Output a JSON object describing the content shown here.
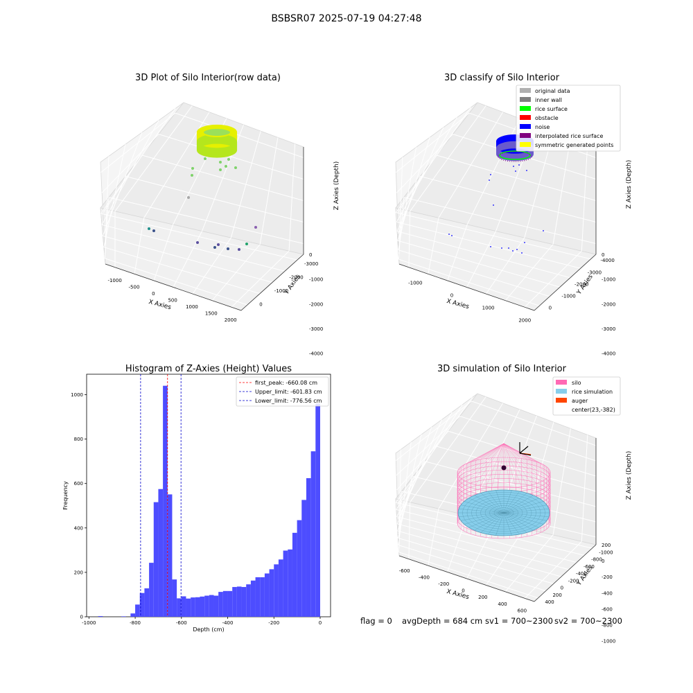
{
  "figure_title": "BSBSR07 2025-07-19 04:27:48",
  "footer": {
    "flag": "flag = 0",
    "avg_depth": "avgDepth = 684 cm",
    "sv1": "sv1 = 700~2300",
    "sv2": "sv2 = 700~2300"
  },
  "colors": {
    "hist_bar": "#4d4dff",
    "first_peak_line": "#ff0000",
    "limit_line": "#0000cc",
    "rice_surface": "#00ff00",
    "silo": "#ff69b4",
    "rice_simulation": "#87ceeb",
    "auger": "#ff4500"
  },
  "chart_data": [
    {
      "type": "scatter3d",
      "title": "3D Plot of Silo Interior(row data)",
      "xlabel": "X Axies",
      "ylabel": "Y Axies",
      "zlabel": "Z Axies (Depth)",
      "x_ticks": [
        "-1000",
        "-500",
        "0",
        "500",
        "1000",
        "1500",
        "2000"
      ],
      "y_ticks": [
        "0",
        "-1000",
        "-2000",
        "-3000"
      ],
      "z_ticks": [
        "0",
        "-1000",
        "-2000",
        "-3000",
        "-4000"
      ],
      "colormap": "viridis-by-depth"
    },
    {
      "type": "scatter3d",
      "title": "3D classify of Silo Interior",
      "xlabel": "X Axies",
      "ylabel": "Y Axies",
      "zlabel": "Z Axies (Depth)",
      "x_ticks": [
        "-1000",
        "0",
        "1000",
        "2000"
      ],
      "y_ticks": [
        "0",
        "-1000",
        "-2000",
        "-3000",
        "-4000"
      ],
      "z_ticks": [
        "0",
        "-1000",
        "-2000",
        "-3000",
        "-4000"
      ],
      "legend_position": "top-right",
      "legend": [
        {
          "label": "original data",
          "color": "#b0b0b0"
        },
        {
          "label": "inner wall",
          "color": "#808080"
        },
        {
          "label": "rice surface",
          "color": "#00ff00"
        },
        {
          "label": "obstacle",
          "color": "#ff0000"
        },
        {
          "label": "noise",
          "color": "#0000ff"
        },
        {
          "label": "interpolated rice surface",
          "color": "#800080"
        },
        {
          "label": "symmetric generated points",
          "color": "#ffff00"
        }
      ]
    },
    {
      "type": "bar",
      "title": "Histogram of Z-Axies (Height) Values",
      "xlabel": "Depth (cm)",
      "ylabel": "Frequency",
      "xlim": [
        -1010,
        45
      ],
      "ylim": [
        0,
        1092
      ],
      "x_ticks": [
        -1000,
        -800,
        -600,
        -400,
        -200,
        0
      ],
      "y_ticks": [
        0,
        200,
        400,
        600,
        800,
        1000
      ],
      "bin_width": 20,
      "bins": [
        [
          -940,
          3
        ],
        [
          -840,
          2
        ],
        [
          -800,
          15
        ],
        [
          -780,
          55
        ],
        [
          -760,
          107
        ],
        [
          -740,
          128
        ],
        [
          -720,
          243
        ],
        [
          -700,
          516
        ],
        [
          -680,
          575
        ],
        [
          -660,
          1040
        ],
        [
          -640,
          551
        ],
        [
          -620,
          168
        ],
        [
          -600,
          83
        ],
        [
          -580,
          92
        ],
        [
          -560,
          82
        ],
        [
          -540,
          87
        ],
        [
          -520,
          88
        ],
        [
          -500,
          91
        ],
        [
          -480,
          95
        ],
        [
          -460,
          98
        ],
        [
          -440,
          95
        ],
        [
          -420,
          112
        ],
        [
          -400,
          116
        ],
        [
          -380,
          116
        ],
        [
          -360,
          134
        ],
        [
          -340,
          136
        ],
        [
          -320,
          134
        ],
        [
          -300,
          146
        ],
        [
          -280,
          163
        ],
        [
          -260,
          178
        ],
        [
          -240,
          178
        ],
        [
          -220,
          195
        ],
        [
          -200,
          214
        ],
        [
          -180,
          236
        ],
        [
          -160,
          258
        ],
        [
          -140,
          298
        ],
        [
          -120,
          303
        ],
        [
          -100,
          378
        ],
        [
          -80,
          435
        ],
        [
          -60,
          526
        ],
        [
          -40,
          624
        ],
        [
          -20,
          745
        ],
        [
          0,
          960
        ]
      ],
      "vlines": [
        {
          "x": -660.08,
          "color": "#ff0000",
          "label": "first_peak: -660.08 cm"
        },
        {
          "x": -601.83,
          "color": "#0000cc",
          "label": "Upper_limit: -601.83 cm"
        },
        {
          "x": -776.56,
          "color": "#0000cc",
          "label": "Lower_limit: -776.56 cm"
        }
      ],
      "legend_position": "top-right"
    },
    {
      "type": "surface3d",
      "title": "3D simulation of Silo Interior",
      "xlabel": "X Axies",
      "ylabel": "Y Axies",
      "zlabel": "Z Axies (Depth)",
      "x_ticks": [
        "-600",
        "-400",
        "-200",
        "0",
        "200",
        "400",
        "600"
      ],
      "y_ticks": [
        "400",
        "200",
        "0",
        "-200",
        "-400",
        "-600",
        "-800",
        "-1000"
      ],
      "z_ticks": [
        "200",
        "0",
        "-200",
        "-400",
        "-600",
        "-800",
        "-1000"
      ],
      "legend_position": "top-right",
      "legend": [
        {
          "label": "silo",
          "color": "#ff69b4"
        },
        {
          "label": "rice simulation",
          "color": "#87ceeb"
        },
        {
          "label": "auger",
          "color": "#ff4500"
        },
        {
          "label": "center(23,-382)",
          "color": ""
        }
      ]
    }
  ]
}
